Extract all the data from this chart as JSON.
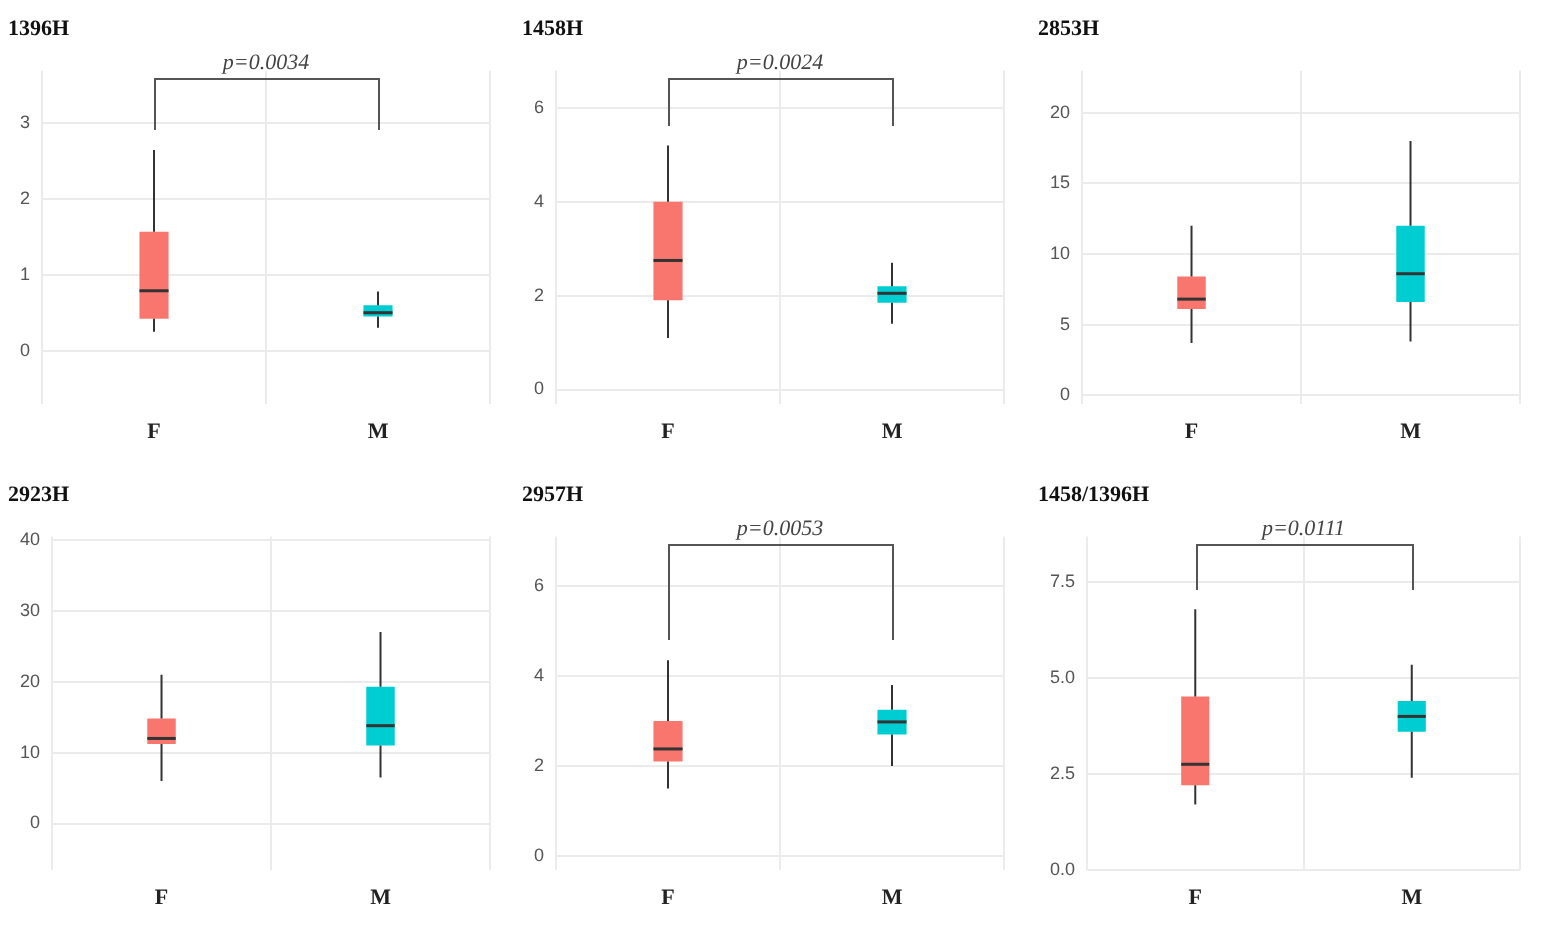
{
  "chart_data": [
    {
      "type": "box",
      "title": "1396H",
      "categories": [
        "F",
        "M"
      ],
      "colors": [
        "#f8766d",
        "#00cdd1"
      ],
      "ylim": [
        -0.7,
        3.7
      ],
      "yticks": [
        0,
        1,
        2,
        3
      ],
      "grid": true,
      "annotations": [
        "p=0.0034"
      ],
      "boxes": [
        {
          "low": 0.25,
          "q1": 0.42,
          "median": 0.79,
          "q3": 1.57,
          "high": 2.65
        },
        {
          "low": 0.3,
          "q1": 0.45,
          "median": 0.5,
          "q3": 0.6,
          "high": 0.78
        }
      ]
    },
    {
      "type": "box",
      "title": "1458H",
      "categories": [
        "F",
        "M"
      ],
      "colors": [
        "#f8766d",
        "#00cdd1"
      ],
      "ylim": [
        -0.3,
        6.8
      ],
      "yticks": [
        0,
        2,
        4,
        6
      ],
      "grid": true,
      "annotations": [
        "p=0.0024"
      ],
      "boxes": [
        {
          "low": 1.1,
          "q1": 1.9,
          "median": 2.75,
          "q3": 4.0,
          "high": 5.2
        },
        {
          "low": 1.4,
          "q1": 1.85,
          "median": 2.05,
          "q3": 2.2,
          "high": 2.7
        }
      ]
    },
    {
      "type": "box",
      "title": "2853H",
      "categories": [
        "F",
        "M"
      ],
      "colors": [
        "#f8766d",
        "#00cdd1"
      ],
      "ylim": [
        -0.6,
        23
      ],
      "yticks": [
        0,
        5,
        10,
        15,
        20
      ],
      "grid": true,
      "boxes": [
        {
          "low": 3.7,
          "q1": 6.1,
          "median": 6.8,
          "q3": 8.4,
          "high": 12
        },
        {
          "low": 3.8,
          "q1": 6.6,
          "median": 8.6,
          "q3": 12,
          "high": 18
        }
      ]
    },
    {
      "type": "box",
      "title": "2923H",
      "categories": [
        "F",
        "M"
      ],
      "colors": [
        "#f8766d",
        "#00cdd1"
      ],
      "ylim": [
        -6.5,
        40.5
      ],
      "yticks": [
        0,
        10,
        20,
        30,
        40
      ],
      "grid": true,
      "boxes": [
        {
          "low": 6,
          "q1": 11.2,
          "median": 12,
          "q3": 14.8,
          "high": 21
        },
        {
          "low": 6.5,
          "q1": 11,
          "median": 13.8,
          "q3": 19.3,
          "high": 27
        }
      ]
    },
    {
      "type": "box",
      "title": "2957H",
      "categories": [
        "F",
        "M"
      ],
      "colors": [
        "#f8766d",
        "#00cdd1"
      ],
      "ylim": [
        -0.3,
        7.1
      ],
      "yticks": [
        0,
        2,
        4,
        6
      ],
      "grid": true,
      "annotations": [
        "p=0.0053"
      ],
      "boxes": [
        {
          "low": 1.5,
          "q1": 2.1,
          "median": 2.38,
          "q3": 3.0,
          "high": 4.35
        },
        {
          "low": 2.0,
          "q1": 2.7,
          "median": 2.98,
          "q3": 3.25,
          "high": 3.8
        }
      ]
    },
    {
      "type": "box",
      "title": "1458/1396H",
      "categories": [
        "F",
        "M"
      ],
      "colors": [
        "#f8766d",
        "#00cdd1"
      ],
      "ylim": [
        0,
        8.7
      ],
      "yticks": [
        {
          "value": 0,
          "label": "0.0"
        },
        {
          "value": 2.5,
          "label": "2.5"
        },
        {
          "value": 5,
          "label": "5.0"
        },
        {
          "value": 7.5,
          "label": "7.5"
        }
      ],
      "grid": true,
      "annotations": [
        "p=0.0111"
      ],
      "boxes": [
        {
          "low": 1.7,
          "q1": 2.2,
          "median": 2.75,
          "q3": 4.52,
          "high": 6.8
        },
        {
          "low": 2.4,
          "q1": 3.6,
          "median": 4.0,
          "q3": 4.4,
          "high": 5.35
        }
      ]
    }
  ]
}
